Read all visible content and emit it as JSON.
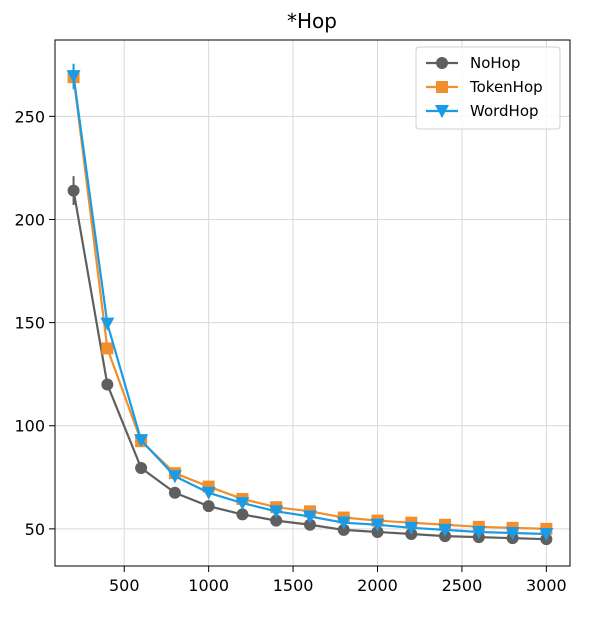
{
  "chart_data": {
    "type": "line",
    "title": "*Hop",
    "xlabel": "",
    "ylabel": "",
    "x": [
      200,
      400,
      600,
      800,
      1000,
      1200,
      1400,
      1600,
      1800,
      2000,
      2200,
      2400,
      2600,
      2800,
      3000
    ],
    "xlim": [
      90,
      3140
    ],
    "ylim": [
      32,
      287
    ],
    "xticks": [
      500,
      1000,
      1500,
      2000,
      2500,
      3000
    ],
    "yticks": [
      50,
      100,
      150,
      200,
      250
    ],
    "grid": true,
    "legend_position": "top-right",
    "series": [
      {
        "name": "NoHop",
        "color": "#5f5f5f",
        "marker": "circle",
        "values": [
          214,
          120,
          79.5,
          67.5,
          61,
          57,
          54,
          52,
          49.5,
          48.5,
          47.5,
          46.5,
          46,
          45.5,
          45
        ],
        "errors": [
          7,
          1.5,
          1.5,
          1,
          1,
          1,
          1,
          1,
          1,
          1,
          1,
          1,
          1,
          1,
          1
        ]
      },
      {
        "name": "TokenHop",
        "color": "#f28e2b",
        "marker": "square",
        "values": [
          269,
          137.5,
          92.5,
          77,
          70.5,
          64.5,
          60.5,
          58.5,
          55.5,
          54,
          53,
          52,
          51,
          50.5,
          50
        ],
        "errors": [
          6,
          2,
          1.5,
          1,
          1,
          1,
          1,
          1,
          1,
          1,
          1,
          1,
          1,
          1,
          1
        ]
      },
      {
        "name": "WordHop",
        "color": "#1a9be6",
        "marker": "triangle-down",
        "values": [
          269.5,
          149.5,
          93,
          75.5,
          67.5,
          62.5,
          58.5,
          56,
          53,
          52,
          50.5,
          49.5,
          48.5,
          48,
          47.5
        ],
        "errors": [
          6,
          2,
          1.5,
          1,
          1,
          1,
          1,
          1,
          1,
          1,
          1,
          1,
          1,
          1,
          1
        ]
      }
    ]
  }
}
